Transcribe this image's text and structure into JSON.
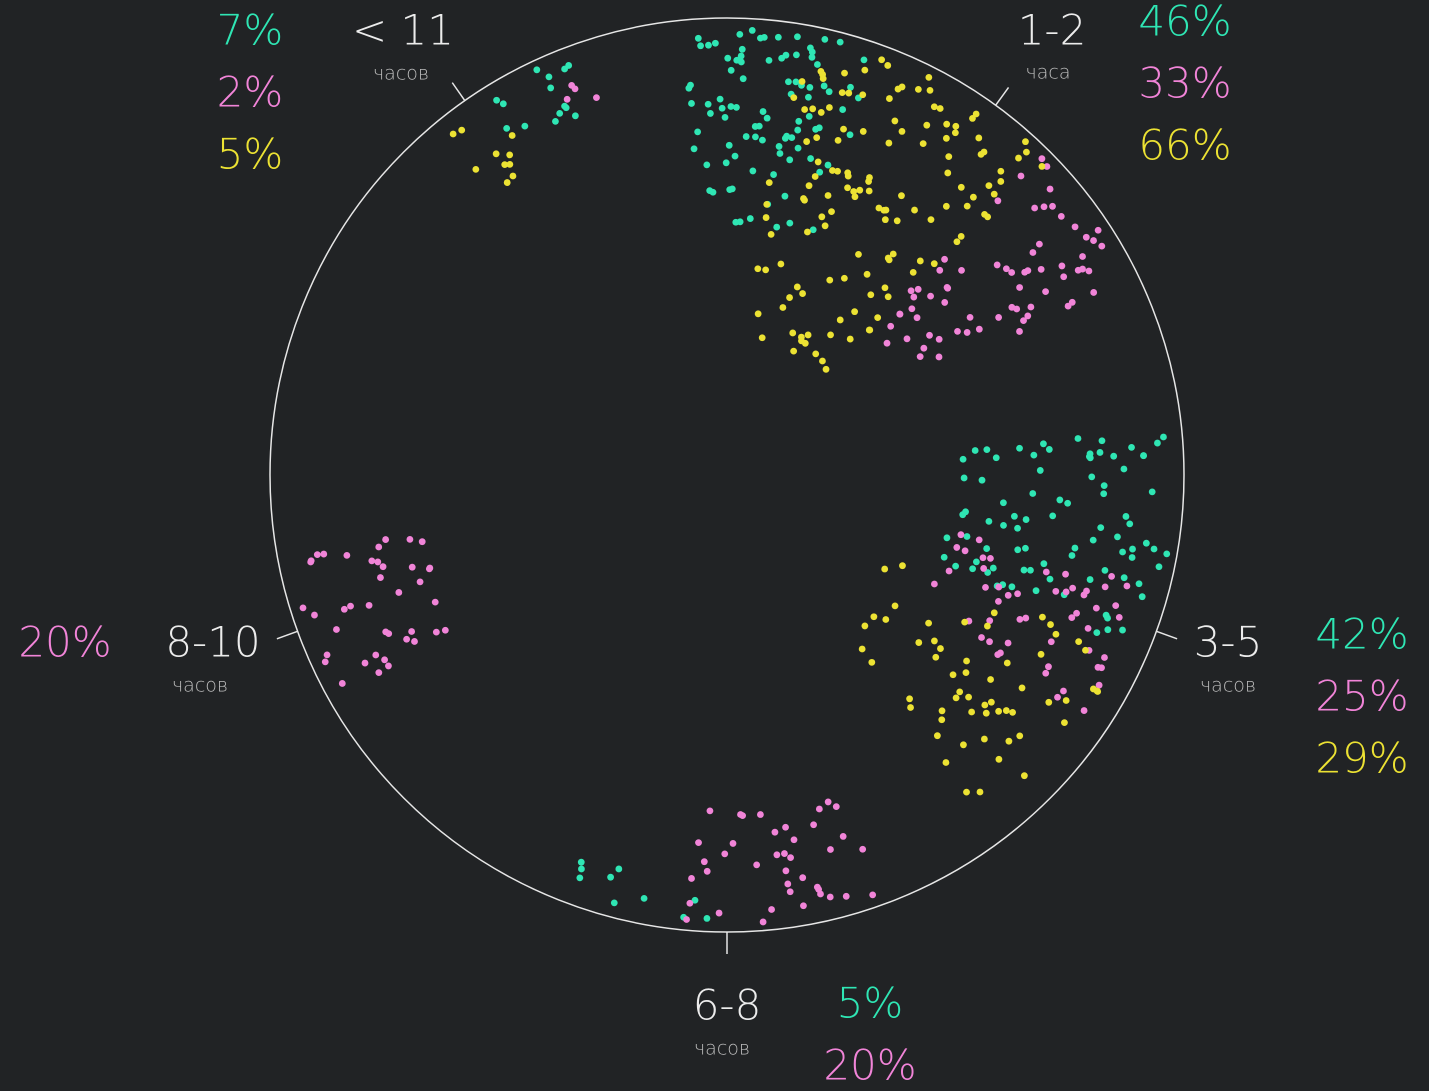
{
  "chart_data": {
    "type": "dot-circle",
    "categories": [
      "< 11",
      "1-2",
      "3-5",
      "6-8",
      "8-10"
    ],
    "category_units": [
      "часов",
      "часа",
      "часов",
      "часов",
      "часов"
    ],
    "series": [
      {
        "color": "#2fe6b4",
        "values": [
          7,
          46,
          42,
          5,
          null
        ],
        "value_labels": [
          "7%",
          "46%",
          "42%",
          "5%",
          null
        ]
      },
      {
        "color": "#f184d8",
        "values": [
          2,
          33,
          25,
          20,
          20
        ],
        "value_labels": [
          "2%",
          "33%",
          "25%",
          "20%",
          "20%"
        ]
      },
      {
        "color": "#ece233",
        "values": [
          5,
          66,
          29,
          null,
          null
        ],
        "value_labels": [
          "5%",
          "66%",
          "29%",
          null,
          null
        ]
      }
    ]
  }
}
